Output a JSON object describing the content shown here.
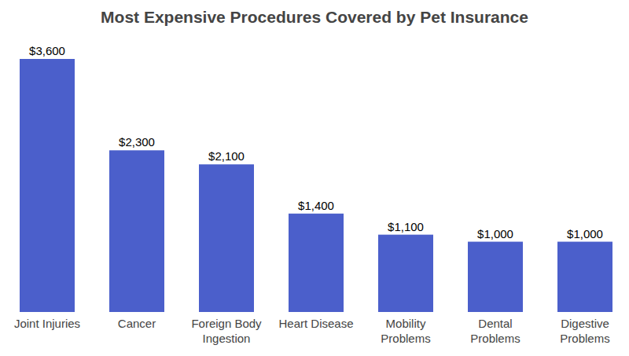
{
  "chart_data": {
    "type": "bar",
    "title": "Most Expensive Procedures Covered by Pet Insurance",
    "categories": [
      "Joint Injuries",
      "Cancer",
      "Foreign Body Ingestion",
      "Heart Disease",
      "Mobility Problems",
      "Dental Problems",
      "Digestive Problems"
    ],
    "values": [
      3600,
      2300,
      2100,
      1400,
      1100,
      1000,
      1000
    ],
    "value_labels": [
      "$3,600",
      "$2,300",
      "$2,100",
      "$1,400",
      "$1,100",
      "$1,000",
      "$1,000"
    ],
    "color": "#4b5fcb",
    "ylim": [
      0,
      3600
    ],
    "grid": false,
    "data_labels": true,
    "tick_labels": "x"
  }
}
